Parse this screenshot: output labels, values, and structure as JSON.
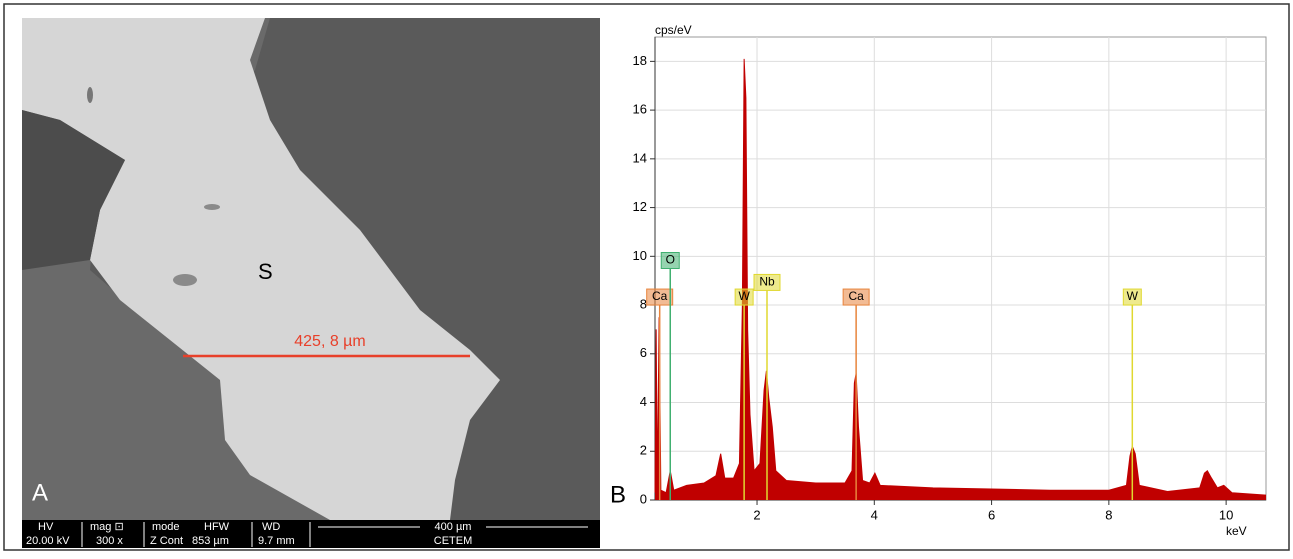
{
  "panel_a": {
    "phase_label": "S",
    "measurement": "425, 8 µm",
    "panel_label": "A",
    "info_bar": {
      "hv_label": "HV",
      "hv": "20.00 kV",
      "mag_label": "mag ⊡",
      "mag": "300 x",
      "mode_label": "mode",
      "mode": "Z Cont",
      "hfw_label": "HFW",
      "hfw": "853 µm",
      "wd_label": "WD",
      "wd": "9.7 mm",
      "scale": "400 µm",
      "lab": "CETEM"
    }
  },
  "chart_data": {
    "type": "area",
    "panel_label": "B",
    "y_label": "cps/eV",
    "x_label": "keV",
    "color": "#c00000",
    "x": [
      0.26,
      0.28,
      0.3,
      0.33,
      0.36,
      0.45,
      0.52,
      0.58,
      0.8,
      1.1,
      1.3,
      1.38,
      1.45,
      1.6,
      1.7,
      1.75,
      1.78,
      1.81,
      1.84,
      1.88,
      1.95,
      2.05,
      2.12,
      2.16,
      2.2,
      2.26,
      2.32,
      2.5,
      3.0,
      3.5,
      3.62,
      3.66,
      3.69,
      3.73,
      3.8,
      3.92,
      4.01,
      4.1,
      5,
      6,
      7,
      8,
      8.3,
      8.36,
      8.4,
      8.45,
      8.52,
      9,
      9.55,
      9.63,
      9.68,
      9.75,
      9.85,
      9.96,
      10.1,
      10.68
    ],
    "values": [
      0.3,
      7.0,
      0.5,
      7.5,
      0.4,
      0.3,
      1.2,
      0.4,
      0.6,
      0.7,
      1.0,
      1.9,
      0.9,
      0.9,
      1.5,
      8,
      18.1,
      16.5,
      7,
      3.5,
      1.2,
      1.5,
      4.5,
      5.3,
      4.2,
      3.0,
      1.2,
      0.8,
      0.7,
      0.7,
      1.2,
      4.8,
      5.2,
      3.0,
      0.8,
      0.7,
      1.1,
      0.6,
      0.5,
      0.45,
      0.4,
      0.4,
      0.6,
      1.8,
      2.2,
      1.9,
      0.6,
      0.35,
      0.5,
      1.1,
      1.2,
      0.9,
      0.5,
      0.6,
      0.3,
      0.2
    ],
    "markers": [
      {
        "label": "Ca",
        "x": 0.34,
        "y": 8,
        "color": "#e8843c"
      },
      {
        "label": "O",
        "x": 0.52,
        "y": 9.5,
        "color": "#40b070"
      },
      {
        "label": "W",
        "x": 1.78,
        "y": 8,
        "color": "#e0d830"
      },
      {
        "label": "Nb",
        "x": 2.17,
        "y": 8.6,
        "color": "#e0d830"
      },
      {
        "label": "Ca",
        "x": 3.69,
        "y": 8,
        "color": "#e8843c"
      },
      {
        "label": "W",
        "x": 8.4,
        "y": 8,
        "color": "#e0d830"
      }
    ],
    "xlim": [
      0.26,
      10.68
    ],
    "ylim": [
      0,
      19
    ],
    "xticks": [
      2,
      4,
      6,
      8,
      10
    ],
    "yticks": [
      0,
      2,
      4,
      6,
      8,
      10,
      12,
      14,
      16,
      18
    ],
    "grid": true
  }
}
